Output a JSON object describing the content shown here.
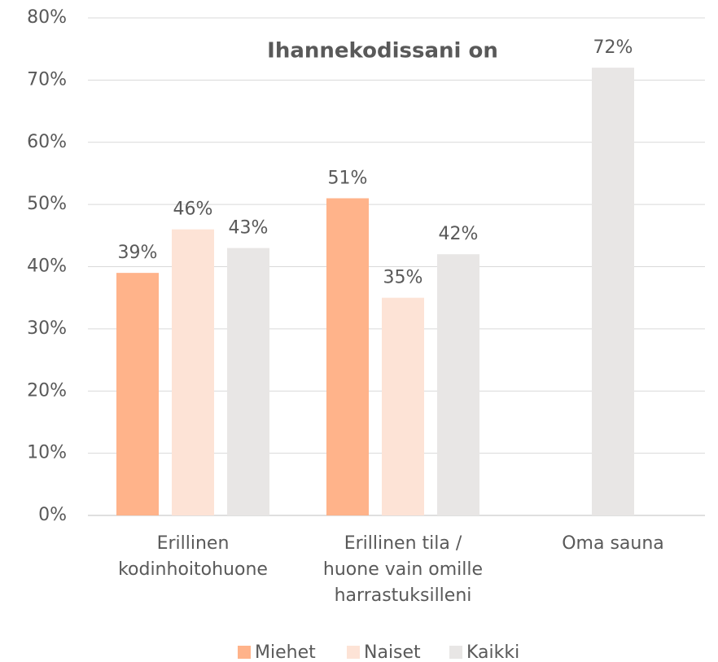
{
  "chart_data": {
    "type": "bar",
    "title": "Ihannekodissani on",
    "categories": [
      [
        "Erillinen",
        "kodinhoitohuone"
      ],
      [
        "Erillinen tila /",
        "huone vain omille",
        "harrastuksilleni"
      ],
      [
        "Oma sauna"
      ]
    ],
    "series": [
      {
        "name": "Miehet",
        "color": "#ffb38a",
        "values": [
          39,
          51,
          null
        ],
        "value_labels": [
          "39%",
          "51%",
          null
        ]
      },
      {
        "name": "Naiset",
        "color": "#fde3d6",
        "values": [
          46,
          35,
          null
        ],
        "value_labels": [
          "46%",
          "35%",
          null
        ]
      },
      {
        "name": "Kaikki",
        "color": "#e8e6e5",
        "values": [
          43,
          42,
          72
        ],
        "value_labels": [
          "43%",
          "42%",
          "72%"
        ]
      }
    ],
    "ylim": [
      0,
      80
    ],
    "yticks": [
      {
        "value": 0,
        "label": "0%"
      },
      {
        "value": 10,
        "label": "10%"
      },
      {
        "value": 20,
        "label": "20%"
      },
      {
        "value": 30,
        "label": "30%"
      },
      {
        "value": 40,
        "label": "40%"
      },
      {
        "value": 50,
        "label": "50%"
      },
      {
        "value": 60,
        "label": "60%"
      },
      {
        "value": 70,
        "label": "70%"
      },
      {
        "value": 80,
        "label": "80%"
      }
    ],
    "grid": true,
    "legend": "bottom"
  }
}
